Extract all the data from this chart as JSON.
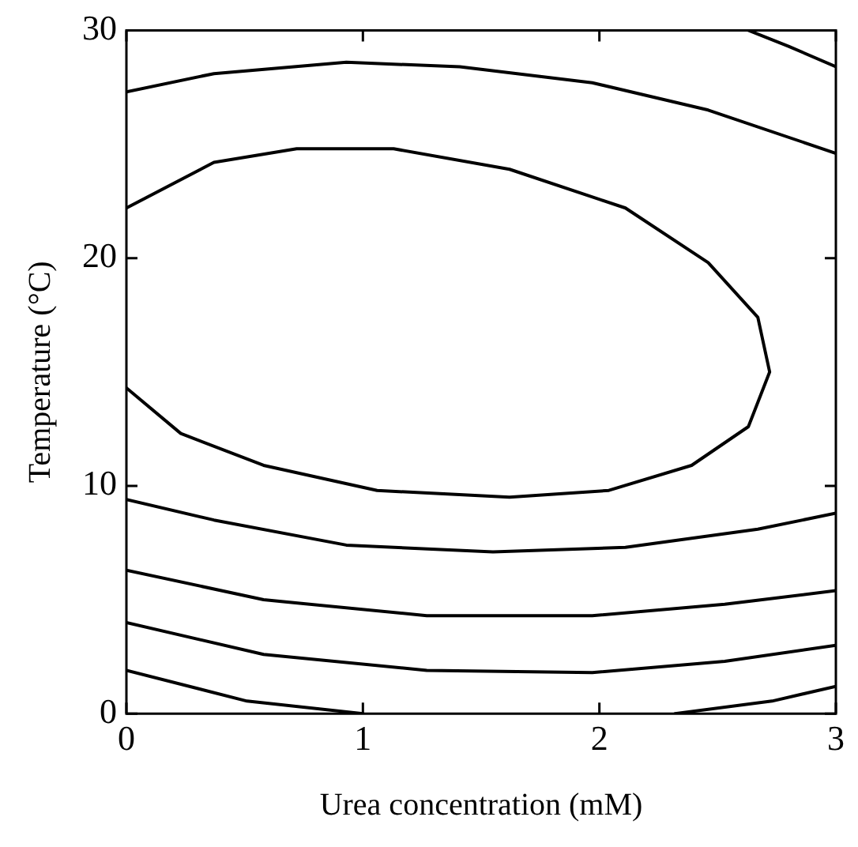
{
  "chart_data": {
    "type": "line",
    "xlabel": "Urea concentration (mM)",
    "ylabel": "Temperature (°C)",
    "xlim": [
      0,
      3
    ],
    "xticks": [
      0,
      1,
      2,
      3
    ],
    "ylim": [
      0,
      30
    ],
    "yticks": [
      0,
      10,
      20,
      30
    ],
    "grid": false,
    "legend": false,
    "marker": "none",
    "line_style": "solid",
    "series": [
      {
        "color": "#000000",
        "x": [
          2.63,
          2.8,
          3
        ],
        "values": [
          30,
          29.3,
          28.4
        ]
      },
      {
        "color": "#000000",
        "x": [
          0,
          0.37,
          0.93,
          1.41,
          1.97,
          2.46,
          3
        ],
        "values": [
          27.3,
          28.1,
          28.6,
          28.4,
          27.7,
          26.5,
          24.6
        ]
      },
      {
        "color": "#000000",
        "x": [
          0,
          0.37,
          0.72,
          1.13,
          1.62,
          2.11,
          2.46,
          2.67,
          2.72,
          2.63,
          2.39,
          2.04,
          1.62,
          1.06,
          0.58,
          0.23,
          0
        ],
        "values": [
          22.2,
          24.2,
          24.8,
          24.8,
          23.9,
          22.2,
          19.8,
          17.4,
          15,
          12.6,
          10.9,
          9.8,
          9.5,
          9.8,
          10.9,
          12.3,
          14.3
        ]
      },
      {
        "color": "#000000",
        "x": [
          0,
          0.37,
          0.93,
          1.55,
          2.11,
          2.67,
          3
        ],
        "values": [
          9.4,
          8.5,
          7.4,
          7.1,
          7.3,
          8.1,
          8.8
        ]
      },
      {
        "color": "#000000",
        "x": [
          0,
          0.58,
          1.27,
          1.97,
          2.53,
          3
        ],
        "values": [
          6.3,
          5,
          4.3,
          4.3,
          4.8,
          5.4
        ]
      },
      {
        "color": "#000000",
        "x": [
          0,
          0.58,
          1.27,
          1.97,
          2.53,
          3
        ],
        "values": [
          4,
          2.6,
          1.9,
          1.8,
          2.3,
          3
        ]
      },
      {
        "color": "#000000",
        "x": [
          0,
          0.51,
          1
        ],
        "values": [
          1.9,
          0.55,
          0
        ]
      },
      {
        "color": "#000000",
        "x": [
          2.32,
          2.73,
          3
        ],
        "values": [
          0,
          0.55,
          1.2
        ]
      }
    ]
  }
}
